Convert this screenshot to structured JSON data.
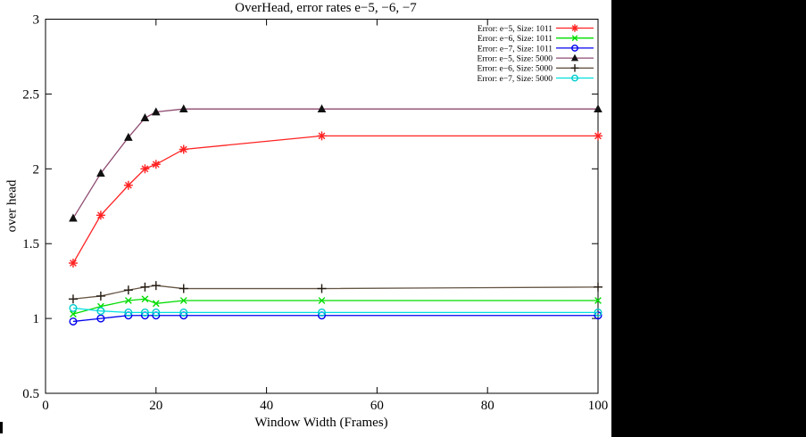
{
  "screen": {
    "background_color": "#000000",
    "plot_background_color": "#ffffff",
    "axis_color": "#000000"
  },
  "chart_data": {
    "type": "line",
    "title": "OverHead, error rates e−5, −6, −7",
    "xlabel": "Window Width (Frames)",
    "ylabel": "over head",
    "xlim": [
      0,
      100
    ],
    "ylim": [
      0.5,
      3
    ],
    "xtick_labels": [
      "0",
      "20",
      "40",
      "60",
      "80",
      "100"
    ],
    "xtick_values": [
      0,
      20,
      40,
      60,
      80,
      100
    ],
    "ytick_labels": [
      "0.5",
      "1",
      "1.5",
      "2",
      "2.5",
      "3"
    ],
    "ytick_values": [
      0.5,
      1,
      1.5,
      2,
      2.5,
      3
    ],
    "grid": false,
    "legend_position": "top-right-inside",
    "x": [
      5,
      10,
      15,
      18,
      20,
      25,
      50,
      100
    ],
    "series": [
      {
        "name": "Error: e−5, Size: 1011",
        "color": "#ff2222",
        "marker": "asterisk",
        "marker_color": "#ff2222",
        "values": [
          1.37,
          1.69,
          1.89,
          2.0,
          2.03,
          2.13,
          2.22,
          2.22
        ]
      },
      {
        "name": "Error: e−6, Size: 1011",
        "color": "#00dd00",
        "marker": "x",
        "marker_color": "#00dd00",
        "values": [
          1.03,
          1.08,
          1.12,
          1.13,
          1.1,
          1.12,
          1.12,
          1.12
        ]
      },
      {
        "name": "Error: e−7, Size: 1011",
        "color": "#0000ee",
        "marker": "circle",
        "marker_color": "#0000ee",
        "values": [
          0.98,
          1.0,
          1.02,
          1.02,
          1.02,
          1.02,
          1.02,
          1.02
        ]
      },
      {
        "name": "Error: e−5, Size: 5000",
        "color": "#8e4a70",
        "marker": "triangle",
        "marker_color": "#111111",
        "values": [
          1.67,
          1.97,
          2.21,
          2.34,
          2.38,
          2.4,
          2.4,
          2.4
        ]
      },
      {
        "name": "Error: e−6, Size: 5000",
        "color": "#665544",
        "marker": "plus",
        "marker_color": "#221a10",
        "values": [
          1.13,
          1.15,
          1.19,
          1.21,
          1.22,
          1.2,
          1.2,
          1.21
        ]
      },
      {
        "name": "Error: e−7, Size: 5000",
        "color": "#00e0e0",
        "marker": "circle",
        "marker_color": "#00cccc",
        "values": [
          1.07,
          1.05,
          1.04,
          1.04,
          1.04,
          1.04,
          1.04,
          1.04
        ]
      }
    ]
  }
}
